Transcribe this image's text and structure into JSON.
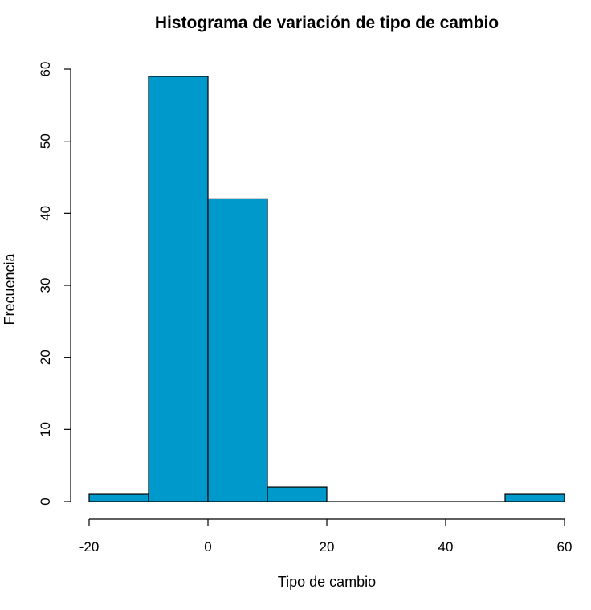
{
  "chart_data": {
    "type": "bar",
    "title": "Histograma de variación de tipo de cambio",
    "xlabel": "Tipo de cambio",
    "ylabel": "Frecuencia",
    "xlim": [
      -20,
      60
    ],
    "ylim": [
      0,
      60
    ],
    "bins": [
      {
        "x0": -20,
        "x1": -10,
        "count": 1
      },
      {
        "x0": -10,
        "x1": 0,
        "count": 59
      },
      {
        "x0": 0,
        "x1": 10,
        "count": 42
      },
      {
        "x0": 10,
        "x1": 20,
        "count": 2
      },
      {
        "x0": 20,
        "x1": 30,
        "count": 0
      },
      {
        "x0": 30,
        "x1": 40,
        "count": 0
      },
      {
        "x0": 40,
        "x1": 50,
        "count": 0
      },
      {
        "x0": 50,
        "x1": 60,
        "count": 1
      }
    ],
    "x_ticks": [
      -20,
      0,
      20,
      40,
      60
    ],
    "x_tick_labels": [
      "-20",
      "0",
      "20",
      "40",
      "60"
    ],
    "y_ticks": [
      0,
      10,
      20,
      30,
      40,
      50,
      60
    ],
    "y_tick_labels": [
      "0",
      "10",
      "20",
      "30",
      "40",
      "50",
      "60"
    ],
    "bar_color": "#0099CC",
    "edge_color": "#000000",
    "grid": false,
    "legend": false
  }
}
